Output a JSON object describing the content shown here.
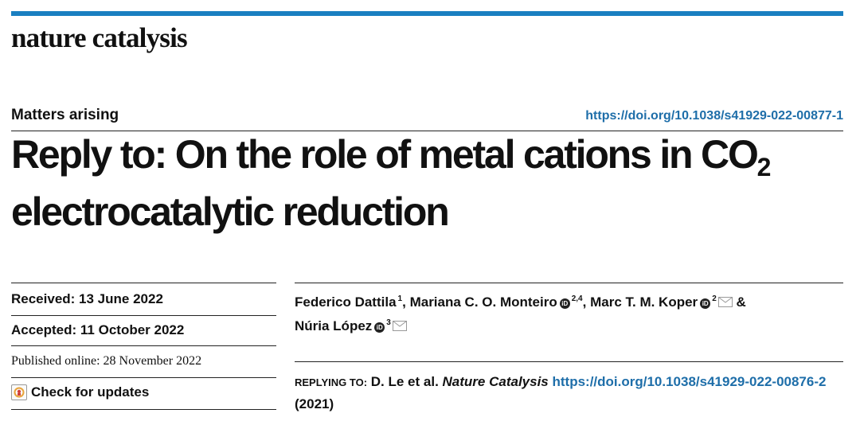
{
  "header": {
    "journal_name": "nature catalysis",
    "accent_color": "#1a7fc1"
  },
  "article": {
    "type_label": "Matters arising",
    "doi": "https://doi.org/10.1038/s41929-022-00877-1",
    "title_part1": "Reply to: On the role of metal cations in CO",
    "title_sub": "2",
    "title_part2": "electrocatalytic reduction"
  },
  "dates": {
    "received": "Received: 13 June 2022",
    "accepted": "Accepted: 11 October 2022",
    "published": "Published online: 28 November 2022"
  },
  "check_updates": {
    "label": "Check for updates",
    "icon": "check-for-updates-icon"
  },
  "authors": [
    {
      "name": "Federico Dattila",
      "affil": "1"
    },
    {
      "name": "Mariana C. O. Monteiro",
      "affil": "2,4"
    },
    {
      "name": "Marc T. M. Koper",
      "affil": "2"
    },
    {
      "name": "Núria López",
      "affil": "3"
    }
  ],
  "author_separators": {
    "comma": ",",
    "amp": "&"
  },
  "replying": {
    "label": "REPLYING TO:",
    "authors": "D. Le et al.",
    "journal": "Nature Catalysis",
    "doi": "https://doi.org/10.1038/s41929-022-00876-2",
    "year": "(2021)"
  }
}
